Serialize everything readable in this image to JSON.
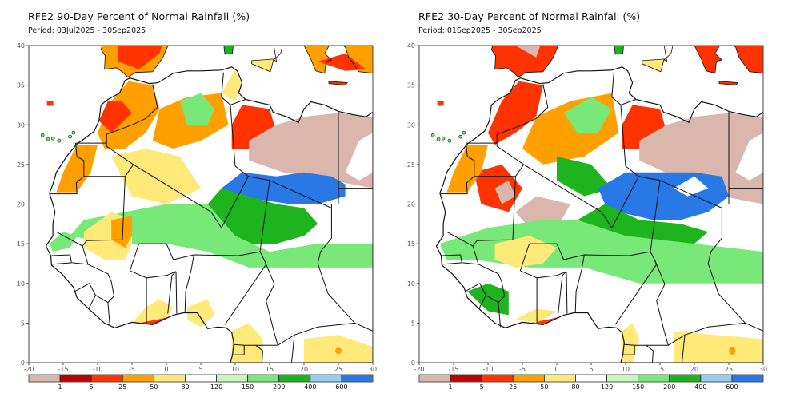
{
  "panels": [
    {
      "title": "RFE2 90-Day Percent of Normal Rainfall (%)",
      "period": "Period: 03Jul2025 - 30Sep2025"
    },
    {
      "title": "RFE2 30-Day Percent of Normal Rainfall (%)",
      "period": "Period: 01Sep2025 - 30Sep2025"
    }
  ],
  "axes": {
    "x_ticks": [
      "-20",
      "-15",
      "-10",
      "-5",
      "0",
      "5",
      "10",
      "15",
      "20",
      "25",
      "30"
    ],
    "y_ticks": [
      "0",
      "5",
      "10",
      "15",
      "20",
      "25",
      "30",
      "35",
      "40"
    ],
    "lon_range": [
      -20,
      30
    ],
    "lat_range": [
      0,
      40
    ]
  },
  "colorbar": {
    "colors": [
      "#dbb6ad",
      "#bf0000",
      "#ff3300",
      "#ffa000",
      "#ffe978",
      "#ffffff",
      "#c8f5be",
      "#78e878",
      "#1eb41e",
      "#96cdf5",
      "#2878e6"
    ],
    "labels": [
      "1",
      "5",
      "25",
      "50",
      "80",
      "120",
      "150",
      "200",
      "400",
      "600"
    ]
  },
  "palette": {
    "brown": "#dbb6ad",
    "darkred": "#bf0000",
    "red": "#ff3300",
    "orange": "#ffa000",
    "yellow": "#ffe978",
    "white": "#ffffff",
    "lightgreen": "#c8f5be",
    "green": "#78e878",
    "darkgreen": "#1eb41e",
    "lightblue": "#96cdf5",
    "blue": "#2878e6",
    "border": "#111111",
    "admin": "#bbbbbb"
  }
}
